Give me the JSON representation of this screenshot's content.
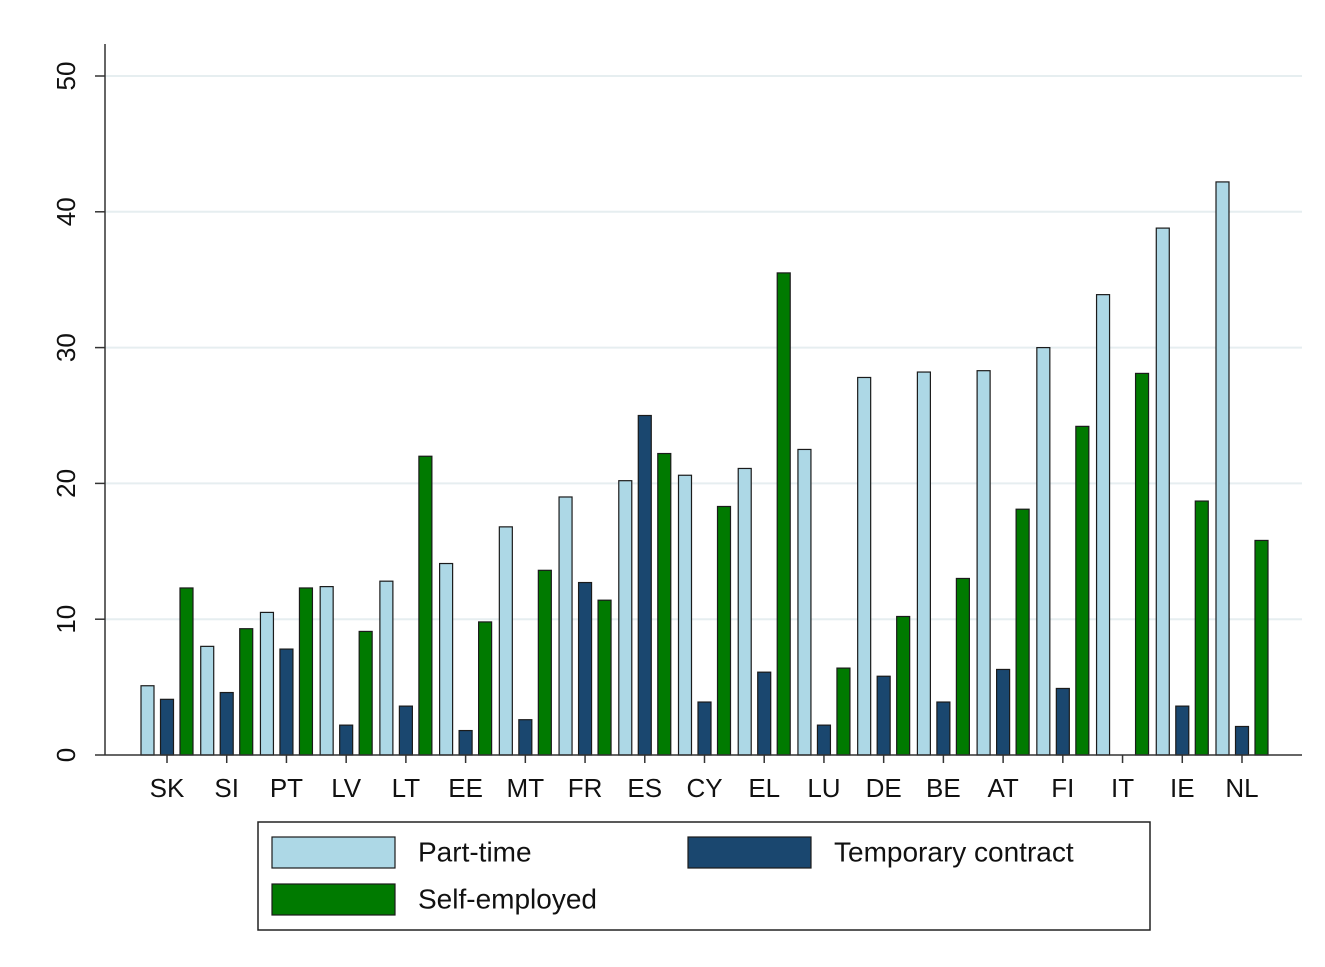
{
  "chart_data": {
    "type": "bar",
    "categories": [
      "SK",
      "SI",
      "PT",
      "LV",
      "LT",
      "EE",
      "MT",
      "FR",
      "ES",
      "CY",
      "EL",
      "LU",
      "DE",
      "BE",
      "AT",
      "FI",
      "IT",
      "IE",
      "NL"
    ],
    "series": [
      {
        "name": "Part-time",
        "color": "#add8e6",
        "values": [
          5.1,
          8.0,
          10.5,
          12.4,
          12.8,
          14.1,
          16.8,
          19.0,
          20.2,
          20.6,
          21.1,
          22.5,
          27.8,
          28.2,
          28.3,
          30.0,
          33.9,
          38.8,
          42.2
        ]
      },
      {
        "name": "Temporary contract",
        "color": "#1a476f",
        "values": [
          4.1,
          4.6,
          7.8,
          2.2,
          3.6,
          1.8,
          2.6,
          12.7,
          25.0,
          3.9,
          6.1,
          2.2,
          5.8,
          3.9,
          6.3,
          4.9,
          null,
          3.6,
          2.1
        ]
      },
      {
        "name": "Self-employed",
        "color": "#007a00",
        "values": [
          12.3,
          9.3,
          12.3,
          9.1,
          22.0,
          9.8,
          13.6,
          11.4,
          22.2,
          18.3,
          35.5,
          6.4,
          10.2,
          13.0,
          18.1,
          24.2,
          28.1,
          18.7,
          15.8
        ]
      }
    ],
    "ylim": [
      0,
      50
    ],
    "yticks": [
      0,
      10,
      20,
      30,
      40,
      50
    ],
    "grid": true,
    "legend": "bottom"
  }
}
